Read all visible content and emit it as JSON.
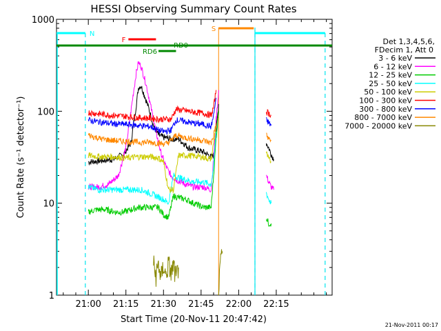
{
  "chart_data": {
    "type": "line",
    "title": "HESSI Observing Summary Count Rates",
    "xlabel": "Start Time (20-Nov-11 20:47:42)",
    "ylabel": "Count Rate (s⁻¹ detector⁻¹)",
    "yscale": "log",
    "ylim": [
      1,
      1000
    ],
    "xlim_minutes": [
      -12.7,
      97.3
    ],
    "x_tick_labels": [
      "21:00",
      "21:15",
      "21:30",
      "21:45",
      "22:00",
      "22:15"
    ],
    "x_tick_minutes": [
      0,
      15,
      30,
      45,
      60,
      75
    ],
    "y_tick_labels": [
      "1",
      "10",
      "100",
      "1000"
    ],
    "y_tick_values": [
      1,
      10,
      100,
      1000
    ],
    "legend": {
      "placement": "right",
      "header": [
        "Det 1,3,4,5,6,",
        "FDecim 1, Att 0"
      ],
      "entries": [
        {
          "label": "3 - 6 keV",
          "color": "#000000"
        },
        {
          "label": "6 - 12 keV",
          "color": "#ff00ff"
        },
        {
          "label": "12 - 25 keV",
          "color": "#00cc00"
        },
        {
          "label": "25 - 50 keV",
          "color": "#00ffff"
        },
        {
          "label": "50 - 100 keV",
          "color": "#cccc00"
        },
        {
          "label": "100 - 300 keV",
          "color": "#ff0000"
        },
        {
          "label": "300 - 800 keV",
          "color": "#0000ff"
        },
        {
          "label": "800 - 7000 keV",
          "color": "#ff8800"
        },
        {
          "label": "7000 - 20000 keV",
          "color": "#888800"
        }
      ]
    },
    "flags": [
      {
        "label": "N",
        "color": "#00ffff",
        "segments": [
          [
            -12.7,
            -1.2
          ],
          [
            66.5,
            94.5
          ]
        ]
      },
      {
        "label": "F",
        "color": "#ff0000",
        "segments": [
          [
            16,
            27
          ]
        ]
      },
      {
        "label": "RD0",
        "color": "#008800",
        "segments": [
          [
            -12.7,
            97.3
          ]
        ]
      },
      {
        "label": "RD6",
        "color": "#008800",
        "segments": [
          [
            28,
            35
          ]
        ]
      },
      {
        "label": "S",
        "color": "#ff8800",
        "segments": [
          [
            52,
            66
          ]
        ]
      }
    ],
    "night_boundaries_minutes": [
      -1.2,
      66.5,
      94.5
    ],
    "saa_start_minutes": 52,
    "series": [
      {
        "name": "3 - 6 keV",
        "color": "#000000",
        "segments": [
          [
            [
              0,
              28
            ],
            [
              5,
              29
            ],
            [
              10,
              30
            ],
            [
              14,
              34
            ],
            [
              17,
              45
            ],
            [
              19,
              110
            ],
            [
              20,
              180
            ],
            [
              21,
              190
            ],
            [
              22,
              160
            ],
            [
              24,
              110
            ],
            [
              26,
              70
            ],
            [
              28,
              55
            ],
            [
              30,
              52
            ],
            [
              33,
              50
            ],
            [
              36,
              50
            ],
            [
              38,
              45
            ],
            [
              40,
              40
            ],
            [
              43,
              38
            ],
            [
              46,
              36
            ],
            [
              49,
              32
            ],
            [
              50,
              33
            ],
            [
              51,
              60
            ],
            [
              52,
              120
            ]
          ],
          [
            [
              71,
              45
            ],
            [
              72,
              40
            ],
            [
              73,
              34
            ],
            [
              74,
              30
            ]
          ]
        ]
      },
      {
        "name": "6 - 12 keV",
        "color": "#ff00ff",
        "segments": [
          [
            [
              0,
              15
            ],
            [
              4,
              15
            ],
            [
              8,
              16
            ],
            [
              12,
              20
            ],
            [
              15,
              40
            ],
            [
              17,
              100
            ],
            [
              19,
              250
            ],
            [
              20,
              340
            ],
            [
              21,
              310
            ],
            [
              23,
              200
            ],
            [
              25,
              110
            ],
            [
              27,
              60
            ],
            [
              29,
              35
            ],
            [
              31,
              25
            ],
            [
              33,
              20
            ],
            [
              35,
              18
            ],
            [
              37,
              17
            ],
            [
              39,
              16
            ],
            [
              42,
              15
            ],
            [
              46,
              15
            ],
            [
              49,
              14
            ],
            [
              50,
              30
            ],
            [
              51,
              80
            ],
            [
              52,
              170
            ]
          ],
          [
            [
              71,
              20
            ],
            [
              72,
              17
            ],
            [
              73,
              15
            ],
            [
              74,
              14
            ]
          ]
        ]
      },
      {
        "name": "12 - 25 keV",
        "color": "#00cc00",
        "segments": [
          [
            [
              0,
              8
            ],
            [
              3,
              8.5
            ],
            [
              7,
              8.5
            ],
            [
              11,
              8
            ],
            [
              14,
              8
            ],
            [
              17,
              8.5
            ],
            [
              20,
              9
            ],
            [
              23,
              9
            ],
            [
              26,
              9
            ],
            [
              28,
              9
            ],
            [
              30,
              7.5
            ],
            [
              32,
              7
            ],
            [
              34,
              12
            ],
            [
              36,
              11.5
            ],
            [
              39,
              11
            ],
            [
              42,
              10
            ],
            [
              46,
              9
            ],
            [
              49,
              9
            ],
            [
              50,
              20
            ],
            [
              51,
              50
            ],
            [
              52,
              100
            ]
          ],
          [
            [
              71,
              7
            ],
            [
              72,
              6
            ],
            [
              73,
              6
            ]
          ]
        ]
      },
      {
        "name": "25 - 50 keV",
        "color": "#00ffff",
        "segments": [
          [
            [
              0,
              15
            ],
            [
              4,
              14
            ],
            [
              8,
              14
            ],
            [
              12,
              14
            ],
            [
              15,
              14
            ],
            [
              18,
              14
            ],
            [
              21,
              14
            ],
            [
              24,
              13
            ],
            [
              27,
              12
            ],
            [
              30,
              11
            ],
            [
              32,
              10
            ],
            [
              34,
              20
            ],
            [
              36,
              19
            ],
            [
              39,
              18
            ],
            [
              42,
              17
            ],
            [
              46,
              17
            ],
            [
              49,
              16
            ],
            [
              50,
              25
            ],
            [
              51,
              60
            ]
          ],
          [
            [
              71,
              13
            ],
            [
              72,
              11
            ],
            [
              73,
              10
            ]
          ]
        ]
      },
      {
        "name": "50 - 100 keV",
        "color": "#cccc00",
        "segments": [
          [
            [
              0,
              33
            ],
            [
              5,
              32
            ],
            [
              10,
              32
            ],
            [
              15,
              31
            ],
            [
              20,
              32
            ],
            [
              25,
              32
            ],
            [
              28,
              31
            ],
            [
              30,
              28
            ],
            [
              32,
              14
            ],
            [
              34,
              14
            ],
            [
              36,
              33
            ],
            [
              40,
              33
            ],
            [
              45,
              32
            ],
            [
              49,
              30
            ],
            [
              50,
              45
            ],
            [
              51,
              70
            ]
          ],
          [
            [
              71,
              35
            ],
            [
              72,
              30
            ],
            [
              73,
              28
            ]
          ]
        ]
      },
      {
        "name": "100 - 300 keV",
        "color": "#ff0000",
        "segments": [
          [
            [
              0,
              97
            ],
            [
              5,
              93
            ],
            [
              10,
              90
            ],
            [
              15,
              88
            ],
            [
              20,
              85
            ],
            [
              25,
              84
            ],
            [
              28,
              82
            ],
            [
              31,
              82
            ],
            [
              33,
              82
            ],
            [
              35,
              105
            ],
            [
              38,
              102
            ],
            [
              42,
              98
            ],
            [
              46,
              95
            ],
            [
              49,
              90
            ],
            [
              50,
              110
            ],
            [
              51,
              170
            ]
          ],
          [
            [
              71,
              100
            ],
            [
              72,
              95
            ],
            [
              73,
              90
            ]
          ]
        ]
      },
      {
        "name": "300 - 800 keV",
        "color": "#0000ff",
        "segments": [
          [
            [
              0,
              80
            ],
            [
              5,
              76
            ],
            [
              10,
              73
            ],
            [
              15,
              72
            ],
            [
              20,
              70
            ],
            [
              25,
              68
            ],
            [
              28,
              62
            ],
            [
              30,
              60
            ],
            [
              33,
              62
            ],
            [
              35,
              80
            ],
            [
              38,
              78
            ],
            [
              42,
              74
            ],
            [
              46,
              72
            ],
            [
              49,
              68
            ],
            [
              50,
              90
            ],
            [
              51,
              140
            ]
          ],
          [
            [
              71,
              80
            ],
            [
              72,
              75
            ],
            [
              73,
              70
            ]
          ]
        ]
      },
      {
        "name": "800 - 7000 keV",
        "color": "#ff8800",
        "segments": [
          [
            [
              0,
              55
            ],
            [
              5,
              50
            ],
            [
              10,
              48
            ],
            [
              15,
              47
            ],
            [
              20,
              46
            ],
            [
              25,
              46
            ],
            [
              28,
              45
            ],
            [
              31,
              44
            ],
            [
              33,
              48
            ],
            [
              35,
              55
            ],
            [
              38,
              52
            ],
            [
              42,
              50
            ],
            [
              46,
              48
            ],
            [
              49,
              45
            ],
            [
              50,
              55
            ],
            [
              51,
              75
            ]
          ],
          [
            [
              71,
              55
            ],
            [
              72,
              50
            ],
            [
              73,
              48
            ]
          ]
        ]
      },
      {
        "name": "7000 - 20000 keV",
        "color": "#888800",
        "segments": [
          [
            [
              26,
              2.2
            ],
            [
              27,
              1.6
            ],
            [
              28,
              2.2
            ],
            [
              29,
              1.5
            ],
            [
              30,
              2.1
            ],
            [
              31,
              1.6
            ],
            [
              32,
              2.2
            ],
            [
              33,
              1.7
            ],
            [
              34,
              2.1
            ],
            [
              35,
              1.5
            ],
            [
              36,
              2.0
            ]
          ],
          [
            [
              52,
              1.1
            ],
            [
              53,
              2.5
            ],
            [
              53.5,
              3
            ]
          ]
        ]
      }
    ]
  },
  "footer_timestamp": "21-Nov-2011 00:17"
}
